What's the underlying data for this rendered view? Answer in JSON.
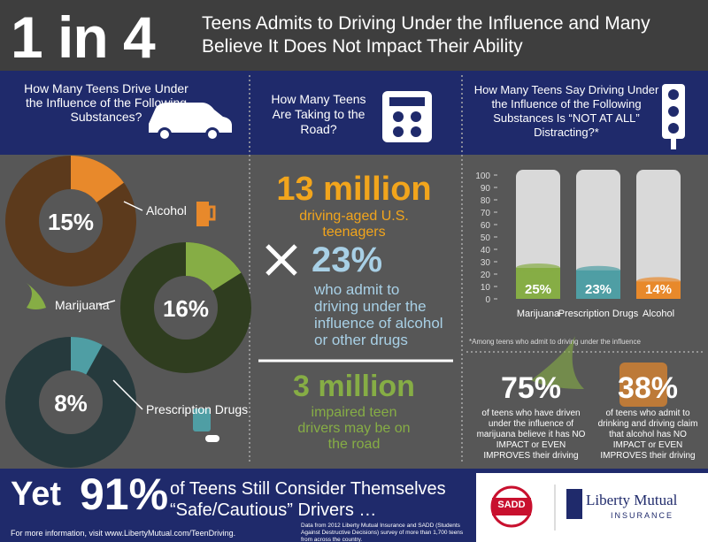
{
  "header": {
    "headline": "1 in 4",
    "title": "Teens Admits to Driving Under the Influence and Many Believe It Does Not Impact Their Ability"
  },
  "usage": {
    "type": "donut",
    "heading": "How Many Teens Drive Under the Influence of the Following Substances?",
    "items": [
      {
        "name": "Alcohol",
        "value": 15,
        "value_label": "15%",
        "color": "#e8892b",
        "track_color": "#5c3a1c"
      },
      {
        "name": "Marijuana",
        "value": 16,
        "value_label": "16%",
        "color": "#86ad45",
        "track_color": "#2f3d1f"
      },
      {
        "name": "Prescription Drugs",
        "value": 8,
        "value_label": "8%",
        "color": "#4f9ea4",
        "track_color": "#263a3d"
      }
    ]
  },
  "road": {
    "heading": "How Many Teens Are Taking to the Road?",
    "total": "13 million",
    "total_label": "driving-aged U.S. teenagers",
    "share": "23%",
    "share_label": "who admit to driving under the influence of alcohol or other drugs",
    "result": "3 million",
    "result_label": "impaired teen drivers may be on the road"
  },
  "distraction": {
    "type": "bar",
    "heading": "How Many Teens Say Driving Under the Influence of the Following Substances Is “NOT AT ALL” Distracting?*",
    "categories": [
      "Marijuana",
      "Prescription Drugs",
      "Alcohol"
    ],
    "values": [
      25,
      23,
      14
    ],
    "value_labels": [
      "25%",
      "23%",
      "14%"
    ],
    "colors": [
      "#86ad45",
      "#4f9ea4",
      "#e8892b"
    ],
    "ylim": [
      0,
      100
    ],
    "yticks": [
      0,
      10,
      20,
      30,
      40,
      50,
      60,
      70,
      80,
      90,
      100
    ],
    "footnote": "*Among teens who admit to driving under the influence"
  },
  "beliefs": [
    {
      "value": "75%",
      "text": "of teens who have driven under the influence of marijuana believe it has NO IMPACT or EVEN IMPROVES their driving"
    },
    {
      "value": "38%",
      "text": "of teens who admit to drinking and driving claim that alcohol has NO IMPACT or EVEN IMPROVES their driving"
    }
  ],
  "footer": {
    "prefix": "Yet",
    "percent": "91%",
    "line1": "of Teens Still Consider Themselves",
    "line2": "“Safe/Cautious” Drivers …",
    "more_info": "For more information, visit www.LibertyMutual.com/TeenDriving.",
    "source": "Data from 2012 Liberty Mutual Insurance and SADD (Students Against Destructive Decisions) survey of more than 1,700 teens from across the country.",
    "logo_sadd": "SADD",
    "logo_brand": "Liberty Mutual",
    "logo_sub": "INSURANCE"
  }
}
